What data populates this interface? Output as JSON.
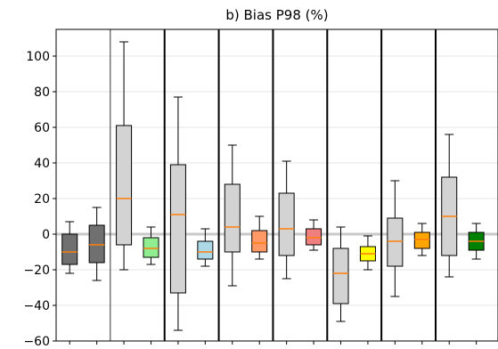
{
  "chart_data": {
    "type": "box",
    "title": "b) Bias P98 (%)",
    "xlabel": "",
    "ylabel": "",
    "ylim": [
      -60,
      115
    ],
    "yticks": [
      -60,
      -40,
      -20,
      0,
      20,
      40,
      60,
      80,
      100
    ],
    "ytick_labels": [
      "−60",
      "−40",
      "−20",
      "0",
      "20",
      "40",
      "60",
      "80",
      "100"
    ],
    "grid": "horizontal",
    "zero_line": 0,
    "boxes": [
      {
        "x": 1,
        "color": "#707070",
        "whisker_low": -22,
        "q1": -17,
        "median": -10,
        "q3": 0,
        "whisker_high": 7
      },
      {
        "x": 2,
        "color": "#707070",
        "whisker_low": -26,
        "q1": -16,
        "median": -6,
        "q3": 5,
        "whisker_high": 15
      },
      {
        "x": 3,
        "color": "#d3d3d3",
        "whisker_low": -20,
        "q1": -6,
        "median": 20,
        "q3": 61,
        "whisker_high": 108
      },
      {
        "x": 4,
        "color": "#90ee90",
        "whisker_low": -17,
        "q1": -13,
        "median": -8,
        "q3": -2,
        "whisker_high": 4
      },
      {
        "x": 5,
        "color": "#d3d3d3",
        "whisker_low": -54,
        "q1": -33,
        "median": 11,
        "q3": 39,
        "whisker_high": 77
      },
      {
        "x": 6,
        "color": "#add8e6",
        "whisker_low": -18,
        "q1": -14,
        "median": -10,
        "q3": -4,
        "whisker_high": 3
      },
      {
        "x": 7,
        "color": "#d3d3d3",
        "whisker_low": -29,
        "q1": -10,
        "median": 4,
        "q3": 28,
        "whisker_high": 50
      },
      {
        "x": 8,
        "color": "#ff9966",
        "whisker_low": -14,
        "q1": -10,
        "median": -5,
        "q3": 2,
        "whisker_high": 10
      },
      {
        "x": 9,
        "color": "#d3d3d3",
        "whisker_low": -25,
        "q1": -12,
        "median": 3,
        "q3": 23,
        "whisker_high": 41
      },
      {
        "x": 10,
        "color": "#f08080",
        "whisker_low": -9,
        "q1": -6,
        "median": -2,
        "q3": 3,
        "whisker_high": 8
      },
      {
        "x": 11,
        "color": "#d3d3d3",
        "whisker_low": -49,
        "q1": -39,
        "median": -22,
        "q3": -8,
        "whisker_high": 4
      },
      {
        "x": 12,
        "color": "#ffff00",
        "whisker_low": -20,
        "q1": -15,
        "median": -11,
        "q3": -7,
        "whisker_high": -1
      },
      {
        "x": 13,
        "color": "#d3d3d3",
        "whisker_low": -35,
        "q1": -18,
        "median": -4,
        "q3": 9,
        "whisker_high": 30
      },
      {
        "x": 14,
        "color": "#ffa500",
        "whisker_low": -12,
        "q1": -8,
        "median": -3,
        "q3": 1,
        "whisker_high": 6
      },
      {
        "x": 15,
        "color": "#d3d3d3",
        "whisker_low": -24,
        "q1": -12,
        "median": 10,
        "q3": 32,
        "whisker_high": 56
      },
      {
        "x": 16,
        "color": "#008000",
        "whisker_low": -14,
        "q1": -9,
        "median": -4,
        "q3": 1,
        "whisker_high": 6
      }
    ],
    "median_color": "#ff7f0e",
    "separators": [
      {
        "after_x": 2.5,
        "weight": "thin"
      },
      {
        "after_x": 4.5,
        "weight": "thick"
      },
      {
        "after_x": 6.5,
        "weight": "thick"
      },
      {
        "after_x": 8.5,
        "weight": "thick"
      },
      {
        "after_x": 10.5,
        "weight": "thick"
      },
      {
        "after_x": 12.5,
        "weight": "thick"
      },
      {
        "after_x": 14.5,
        "weight": "thick"
      }
    ]
  }
}
